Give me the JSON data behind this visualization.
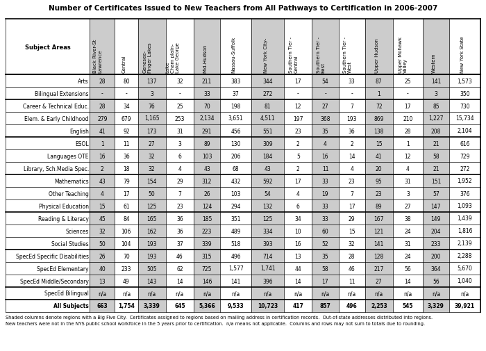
{
  "title": "Number of Certificates Issued to New Teachers from All Pathways to Certification in 2006-2007",
  "col_labels": [
    "Subject Areas",
    "Black River-St\nLawrence",
    "Central",
    "Genesee-\nFinger Lakes",
    "Lake\nCham plain-\nLake George",
    "Mid-Hudson",
    "Nassau-Suffolk",
    "New York City-",
    "Southern Tier -\nCentral",
    "Southern Tier -\nEast",
    "Southern Tier -\nWest",
    "Upper Hudson",
    "Upper Mohawk\nValley",
    "Western",
    "New York State"
  ],
  "shaded_cols": [
    1,
    3,
    5,
    7,
    9,
    11,
    13
  ],
  "rows": [
    [
      "Arts",
      "28",
      "80",
      "137",
      "32",
      "211",
      "383",
      "344",
      "17",
      "54",
      "33",
      "87",
      "25",
      "141",
      "1,573"
    ],
    [
      "Bilingual Extensions",
      "-",
      "-",
      "3",
      "-",
      "33",
      "37",
      "272",
      "-",
      "-",
      "-",
      "1",
      "-",
      "3",
      "350"
    ],
    [
      "Career & Technical Educ.",
      "28",
      "34",
      "76",
      "25",
      "70",
      "198",
      "81",
      "12",
      "27",
      "7",
      "72",
      "17",
      "85",
      "730"
    ],
    [
      "Elem. & Early Childhood",
      "279",
      "679",
      "1,165",
      "253",
      "2,134",
      "3,651",
      "4,511",
      "197",
      "368",
      "193",
      "869",
      "210",
      "1,227",
      "15,734"
    ],
    [
      "English",
      "41",
      "92",
      "173",
      "31",
      "291",
      "456",
      "551",
      "23",
      "35",
      "36",
      "138",
      "28",
      "208",
      "2,104"
    ],
    [
      "ESOL",
      "1",
      "11",
      "27",
      "3",
      "89",
      "130",
      "309",
      "2",
      "4",
      "2",
      "15",
      "1",
      "21",
      "616"
    ],
    [
      "Languages OTE",
      "16",
      "36",
      "32",
      "6",
      "103",
      "206",
      "184",
      "5",
      "16",
      "14",
      "41",
      "12",
      "58",
      "729"
    ],
    [
      "Library, Sch.Media Spec.",
      "2",
      "18",
      "32",
      "4",
      "43",
      "68",
      "43",
      "2",
      "11",
      "4",
      "20",
      "4",
      "21",
      "272"
    ],
    [
      "Mathematics",
      "43",
      "79",
      "154",
      "29",
      "312",
      "432",
      "592",
      "17",
      "33",
      "23",
      "95",
      "31",
      "151",
      "1,952"
    ],
    [
      "Other Teaching",
      "4",
      "17",
      "50",
      "7",
      "26",
      "103",
      "54",
      "4",
      "19",
      "7",
      "23",
      "3",
      "57",
      "376"
    ],
    [
      "Physical Education",
      "15",
      "61",
      "125",
      "23",
      "124",
      "294",
      "132",
      "6",
      "33",
      "17",
      "89",
      "27",
      "147",
      "1,093"
    ],
    [
      "Reading & Literacy",
      "45",
      "84",
      "165",
      "36",
      "185",
      "351",
      "125",
      "34",
      "33",
      "29",
      "167",
      "38",
      "149",
      "1,439"
    ],
    [
      "Sciences",
      "32",
      "106",
      "162",
      "36",
      "223",
      "489",
      "334",
      "10",
      "60",
      "15",
      "121",
      "24",
      "204",
      "1,816"
    ],
    [
      "Social Studies",
      "50",
      "104",
      "193",
      "37",
      "339",
      "518",
      "393",
      "16",
      "52",
      "32",
      "141",
      "31",
      "233",
      "2,139"
    ],
    [
      "SpecEd Specific Disabilities",
      "26",
      "70",
      "193",
      "46",
      "315",
      "496",
      "714",
      "13",
      "35",
      "28",
      "128",
      "24",
      "200",
      "2,288"
    ],
    [
      "SpecEd Elementary",
      "40",
      "233",
      "505",
      "62",
      "725",
      "1,577",
      "1,741",
      "44",
      "58",
      "46",
      "217",
      "56",
      "364",
      "5,670"
    ],
    [
      "SpecEd Middle/Secondary",
      "13",
      "49",
      "143",
      "14",
      "146",
      "141",
      "396",
      "14",
      "17",
      "11",
      "27",
      "14",
      "56",
      "1,040"
    ],
    [
      "SpecEd Bilingual",
      "n/a",
      "n/a",
      "n/a",
      "n/a",
      "n/a",
      "n/a",
      "n/a",
      "n/a",
      "n/a",
      "n/a",
      "n/a",
      "n/a",
      "n/a",
      "n/a"
    ],
    [
      "All Subjects",
      "663",
      "1,754",
      "3,339",
      "645",
      "5,366",
      "9,533",
      "10,723",
      "417",
      "857",
      "496",
      "2,253",
      "545",
      "3,329",
      "39,921"
    ]
  ],
  "thick_border_after_rows": [
    2,
    5,
    8,
    11,
    14,
    17,
    18
  ],
  "footnote1": "Shaded columns denote regions with a Big Five City.  Certificates assigned to regions based on mailing address in certification records.  Out-of-state addresses distributed into regions.",
  "footnote2": "New teachers were not in the NYS public school workforce in the 5 years prior to certification.  n/a means not applicable.  Columns and rows may not sum to totals due to rounding.",
  "shaded_color": "#cccccc",
  "title_fontsize": 7.5,
  "header_fontsize": 5.0,
  "data_fontsize": 5.5,
  "footnote_fontsize": 4.8
}
